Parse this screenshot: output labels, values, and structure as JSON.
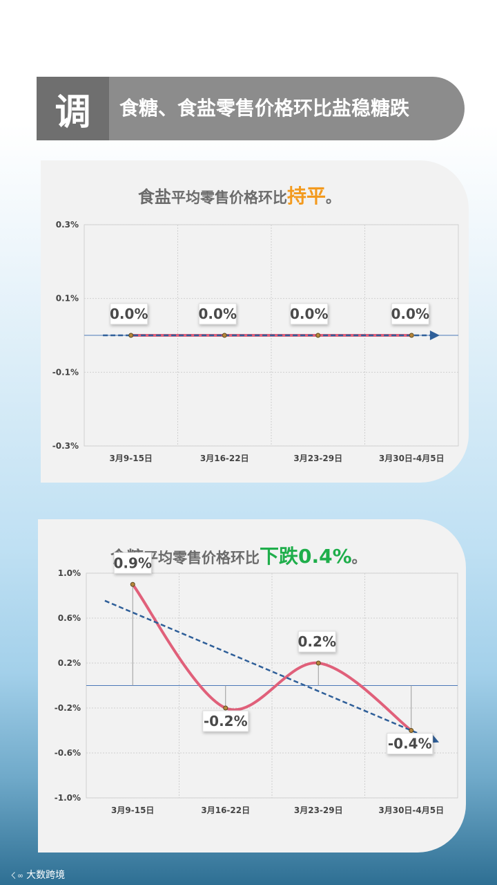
{
  "header": {
    "badge": "调",
    "title": "食糖、食盐零售价格环比盐稳糖跌"
  },
  "chart1_title": {
    "b1": "食盐",
    "rest": "平均零售价格环比",
    "hl": "持平",
    "end": "。"
  },
  "chart2_title": {
    "b1": "食糖",
    "rest": "平均零售价格环比",
    "hl": "下跌0.4%",
    "end": "。"
  },
  "footer": {
    "logo": "ㄑ∞",
    "text": "大数跨境"
  },
  "colors": {
    "line": "#e0607a",
    "trend": "#2f5f99",
    "axis": "#4a78b8",
    "orange": "#f39a1e",
    "green": "#1fae4b"
  },
  "chart_data": [
    {
      "type": "line",
      "categories": [
        "3月9-15日",
        "3月16-22日",
        "3月23-29日",
        "3月30日-4月5日"
      ],
      "series": [
        {
          "values": [
            0.0,
            0.0,
            0.0,
            0.0
          ]
        }
      ],
      "data_labels": [
        "0.0%",
        "0.0%",
        "0.0%",
        "0.0%"
      ],
      "yticks": [
        "0.3%",
        "0.1%",
        "-0.1%",
        "-0.3%"
      ],
      "ylim": [
        -0.3,
        0.3
      ],
      "trendline": true
    },
    {
      "type": "line",
      "categories": [
        "3月9-15日",
        "3月16-22日",
        "3月23-29日",
        "3月30日-4月5日"
      ],
      "series": [
        {
          "values": [
            0.9,
            -0.2,
            0.2,
            -0.4
          ]
        }
      ],
      "data_labels": [
        "0.9%",
        "-0.2%",
        "0.2%",
        "-0.4%"
      ],
      "yticks": [
        "1.0%",
        "0.6%",
        "0.2%",
        "-0.2%",
        "-0.6%",
        "-1.0%"
      ],
      "ylim": [
        -1.0,
        1.0
      ],
      "trendline": true
    }
  ]
}
